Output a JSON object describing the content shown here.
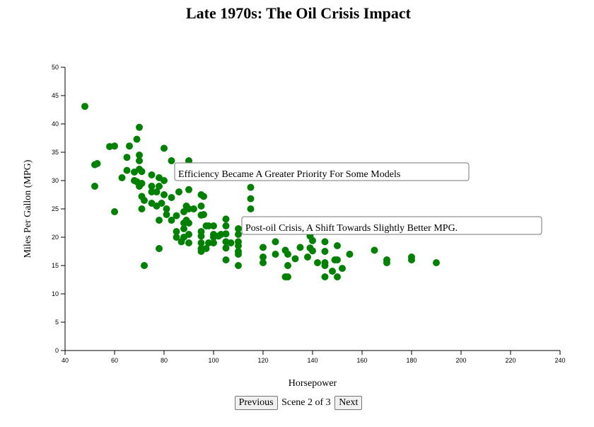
{
  "page": {
    "title": "Late 1970s: The Oil Crisis Impact"
  },
  "controls": {
    "previous_label": "Previous",
    "scene_text": "Scene 2 of 3",
    "next_label": "Next"
  },
  "colors": {
    "points": "#008000",
    "annotation_border": "#777777"
  },
  "chart_data": {
    "type": "scatter",
    "title": "Late 1970s: The Oil Crisis Impact",
    "xlabel": "Horsepower",
    "ylabel": "Miles Per Gallon (MPG)",
    "xlim": [
      40,
      240
    ],
    "ylim": [
      0,
      50
    ],
    "xticks": [
      40,
      60,
      80,
      100,
      120,
      140,
      160,
      180,
      200,
      220,
      240
    ],
    "yticks": [
      0,
      5,
      10,
      15,
      20,
      25,
      30,
      35,
      40,
      45,
      50
    ],
    "grid": false,
    "points": [
      [
        48,
        43.1
      ],
      [
        52,
        32.8
      ],
      [
        53,
        33.0
      ],
      [
        52,
        29.0
      ],
      [
        58,
        36.0
      ],
      [
        60,
        36.1
      ],
      [
        60,
        24.5
      ],
      [
        63,
        30.5
      ],
      [
        65,
        31.8
      ],
      [
        65,
        34.1
      ],
      [
        66,
        36.1
      ],
      [
        68,
        30.0
      ],
      [
        68,
        31.5
      ],
      [
        69,
        29.8
      ],
      [
        69,
        37.3
      ],
      [
        70,
        39.4
      ],
      [
        70,
        34.5
      ],
      [
        70,
        33.5
      ],
      [
        70,
        32.0
      ],
      [
        71,
        31.6
      ],
      [
        70,
        29.0
      ],
      [
        71,
        29.5
      ],
      [
        71,
        27.2
      ],
      [
        71,
        25.0
      ],
      [
        72,
        26.5
      ],
      [
        72,
        15.0
      ],
      [
        75,
        31.0
      ],
      [
        75,
        29.0
      ],
      [
        75,
        28.0
      ],
      [
        75,
        26.0
      ],
      [
        77,
        28.0
      ],
      [
        77,
        25.5
      ],
      [
        78,
        30.5
      ],
      [
        78,
        29.0
      ],
      [
        78,
        23.0
      ],
      [
        78,
        18.0
      ],
      [
        79,
        26.0
      ],
      [
        80,
        35.7
      ],
      [
        80,
        30.0
      ],
      [
        80,
        27.5
      ],
      [
        81,
        25.0
      ],
      [
        81,
        24.0
      ],
      [
        83,
        33.5
      ],
      [
        83,
        27.0
      ],
      [
        83,
        23.0
      ],
      [
        85,
        21.0
      ],
      [
        85,
        20.0
      ],
      [
        85,
        23.8
      ],
      [
        86,
        28.0
      ],
      [
        87,
        19.2
      ],
      [
        88,
        24.5
      ],
      [
        88,
        22.5
      ],
      [
        88,
        21.5
      ],
      [
        88,
        20.0
      ],
      [
        89,
        25.5
      ],
      [
        89,
        23.0
      ],
      [
        90,
        33.5
      ],
      [
        90,
        28.4
      ],
      [
        90,
        25.0
      ],
      [
        90,
        22.5
      ],
      [
        90,
        20.5
      ],
      [
        90,
        19.0
      ],
      [
        92,
        25.0
      ],
      [
        95,
        27.5
      ],
      [
        95,
        25.5
      ],
      [
        95,
        23.9
      ],
      [
        95,
        21.0
      ],
      [
        95,
        20.2
      ],
      [
        95,
        19.0
      ],
      [
        95,
        18.0
      ],
      [
        95,
        17.5
      ],
      [
        96,
        27.2
      ],
      [
        96,
        24.0
      ],
      [
        97,
        22.0
      ],
      [
        97,
        18.0
      ],
      [
        98,
        22.0
      ],
      [
        98,
        19.0
      ],
      [
        100,
        22.0
      ],
      [
        100,
        20.5
      ],
      [
        100,
        20.0
      ],
      [
        100,
        19.0
      ],
      [
        102,
        20.2
      ],
      [
        103,
        20.5
      ],
      [
        105,
        23.2
      ],
      [
        105,
        22.0
      ],
      [
        105,
        20.6
      ],
      [
        105,
        19.2
      ],
      [
        105,
        18.1
      ],
      [
        105,
        16.0
      ],
      [
        107,
        19.0
      ],
      [
        110,
        21.5
      ],
      [
        110,
        20.5
      ],
      [
        110,
        19.2
      ],
      [
        110,
        18.5
      ],
      [
        110,
        17.5
      ],
      [
        110,
        17.0
      ],
      [
        110,
        15.0
      ],
      [
        115,
        28.8
      ],
      [
        115,
        26.8
      ],
      [
        115,
        25.0
      ],
      [
        120,
        18.2
      ],
      [
        120,
        16.5
      ],
      [
        120,
        15.5
      ],
      [
        125,
        19.2
      ],
      [
        125,
        17.0
      ],
      [
        129,
        17.7
      ],
      [
        130,
        17.0
      ],
      [
        130,
        15.0
      ],
      [
        129,
        13.0
      ],
      [
        130,
        13.0
      ],
      [
        133,
        16.2
      ],
      [
        135,
        18.2
      ],
      [
        138,
        16.5
      ],
      [
        139,
        20.2
      ],
      [
        139,
        18.1
      ],
      [
        140,
        19.4
      ],
      [
        140,
        17.6
      ],
      [
        142,
        15.5
      ],
      [
        145,
        19.2
      ],
      [
        145,
        17.5
      ],
      [
        145,
        15.5
      ],
      [
        145,
        15.0
      ],
      [
        145,
        13.0
      ],
      [
        148,
        14.0
      ],
      [
        149,
        16.0
      ],
      [
        150,
        18.5
      ],
      [
        150,
        16.0
      ],
      [
        150,
        13.0
      ],
      [
        152,
        14.5
      ],
      [
        155,
        17.0
      ],
      [
        165,
        17.7
      ],
      [
        170,
        16.0
      ],
      [
        170,
        15.5
      ],
      [
        180,
        16.5
      ],
      [
        180,
        16.0
      ],
      [
        190,
        15.5
      ]
    ],
    "annotations": [
      {
        "text": "Efficiency Became A Greater Priority For Some Models"
      },
      {
        "text": "Post-oil Crisis, A Shift Towards Slightly Better MPG."
      }
    ]
  }
}
